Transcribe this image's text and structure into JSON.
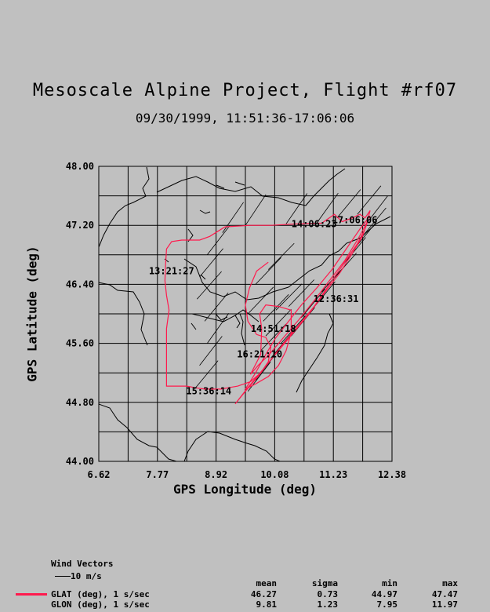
{
  "title": "Mesoscale Alpine Project, Flight #rf07",
  "subtitle": "09/30/1999, 11:51:36-17:06:06",
  "chart_data": {
    "type": "map-track",
    "xlabel": "GPS Longitude (deg)",
    "ylabel": "GPS Latitude (deg)",
    "xlim": [
      6.62,
      12.38
    ],
    "ylim": [
      44.0,
      48.0
    ],
    "xticks": [
      "6.62",
      "7.77",
      "8.92",
      "10.08",
      "11.23",
      "12.38"
    ],
    "yticks": [
      "44.00",
      "44.80",
      "45.60",
      "46.40",
      "47.20",
      "48.00"
    ],
    "grid": true,
    "track_color": "#ff1a4d",
    "track": [
      [
        9.95,
        46.7
      ],
      [
        9.72,
        46.58
      ],
      [
        9.58,
        46.35
      ],
      [
        9.5,
        46.12
      ],
      [
        9.55,
        45.9
      ],
      [
        9.72,
        45.72
      ],
      [
        9.9,
        45.68
      ],
      [
        10.0,
        45.55
      ],
      [
        9.95,
        45.35
      ],
      [
        9.8,
        45.2
      ],
      [
        9.6,
        45.08
      ],
      [
        9.35,
        45.02
      ],
      [
        9.02,
        44.98
      ],
      [
        8.7,
        44.98
      ],
      [
        8.5,
        45.0
      ],
      [
        8.35,
        45.02
      ],
      [
        8.15,
        45.02
      ],
      [
        7.95,
        45.02
      ],
      [
        7.95,
        45.25
      ],
      [
        7.95,
        45.5
      ],
      [
        7.95,
        45.8
      ],
      [
        8.0,
        46.05
      ],
      [
        7.95,
        46.25
      ],
      [
        7.92,
        46.45
      ],
      [
        7.93,
        46.65
      ],
      [
        7.95,
        46.88
      ],
      [
        8.05,
        46.98
      ],
      [
        8.25,
        47.0
      ],
      [
        8.6,
        47.0
      ],
      [
        8.8,
        47.05
      ],
      [
        9.1,
        47.18
      ],
      [
        9.6,
        47.2
      ],
      [
        10.0,
        47.2
      ],
      [
        10.5,
        47.22
      ],
      [
        11.0,
        47.23
      ],
      [
        11.25,
        47.35
      ],
      [
        11.4,
        47.25
      ],
      [
        11.6,
        47.3
      ],
      [
        11.75,
        47.35
      ],
      [
        11.85,
        47.3
      ],
      [
        11.95,
        47.4
      ],
      [
        11.85,
        47.15
      ],
      [
        11.7,
        46.95
      ],
      [
        11.5,
        46.75
      ],
      [
        11.3,
        46.55
      ],
      [
        11.1,
        46.35
      ],
      [
        10.85,
        46.1
      ],
      [
        10.55,
        45.85
      ],
      [
        10.25,
        45.6
      ],
      [
        10.0,
        45.38
      ],
      [
        9.75,
        45.15
      ],
      [
        9.5,
        44.95
      ],
      [
        9.3,
        44.78
      ],
      [
        9.55,
        45.0
      ],
      [
        9.85,
        45.25
      ],
      [
        10.15,
        45.5
      ],
      [
        10.45,
        45.75
      ],
      [
        10.75,
        46.0
      ],
      [
        11.05,
        46.28
      ],
      [
        11.35,
        46.55
      ],
      [
        11.6,
        46.82
      ],
      [
        11.8,
        47.05
      ],
      [
        11.9,
        47.25
      ],
      [
        11.7,
        47.0
      ],
      [
        11.45,
        46.72
      ],
      [
        11.15,
        46.45
      ],
      [
        10.85,
        46.18
      ],
      [
        10.55,
        45.92
      ],
      [
        10.25,
        45.68
      ],
      [
        9.98,
        45.46
      ],
      [
        9.75,
        45.3
      ],
      [
        9.6,
        45.18
      ],
      [
        9.8,
        45.45
      ],
      [
        9.82,
        45.8
      ],
      [
        9.78,
        46.0
      ],
      [
        9.9,
        46.12
      ],
      [
        10.15,
        46.1
      ],
      [
        10.4,
        46.05
      ],
      [
        10.4,
        45.75
      ],
      [
        10.3,
        45.5
      ],
      [
        10.15,
        45.3
      ],
      [
        9.95,
        45.15
      ],
      [
        9.7,
        45.05
      ],
      [
        9.5,
        44.98
      ],
      [
        9.7,
        45.2
      ],
      [
        9.9,
        45.45
      ],
      [
        10.1,
        45.68
      ],
      [
        10.35,
        45.9
      ],
      [
        10.6,
        46.12
      ],
      [
        10.9,
        46.35
      ],
      [
        11.2,
        46.6
      ],
      [
        11.5,
        46.9
      ],
      [
        11.75,
        47.15
      ],
      [
        11.95,
        47.33
      ]
    ],
    "wind_vector_length_deg": 0.18,
    "wind_vectors": [
      [
        8.5,
        44.98,
        50
      ],
      [
        8.6,
        45.3,
        52
      ],
      [
        8.75,
        45.6,
        54
      ],
      [
        8.7,
        45.9,
        50
      ],
      [
        8.55,
        46.2,
        48
      ],
      [
        8.6,
        46.5,
        50
      ],
      [
        8.75,
        46.8,
        52
      ],
      [
        9.05,
        47.1,
        55
      ],
      [
        9.5,
        47.2,
        56
      ],
      [
        10.3,
        47.22,
        55
      ],
      [
        10.9,
        47.23,
        54
      ],
      [
        11.3,
        47.3,
        50
      ],
      [
        11.7,
        47.35,
        50
      ],
      [
        11.85,
        47.2,
        52
      ],
      [
        11.6,
        46.85,
        50
      ],
      [
        11.2,
        46.45,
        48
      ],
      [
        10.8,
        46.05,
        50
      ],
      [
        10.4,
        45.7,
        50
      ],
      [
        10.0,
        45.4,
        50
      ],
      [
        9.7,
        45.1,
        52
      ],
      [
        9.55,
        44.95,
        52
      ],
      [
        10.2,
        45.6,
        48
      ],
      [
        10.6,
        45.95,
        50
      ],
      [
        11.0,
        46.3,
        48
      ],
      [
        11.4,
        46.65,
        50
      ],
      [
        11.8,
        47.05,
        50
      ],
      [
        9.8,
        45.5,
        46
      ],
      [
        9.85,
        45.9,
        46
      ],
      [
        10.1,
        46.05,
        45
      ],
      [
        10.35,
        46.1,
        46
      ],
      [
        9.95,
        46.6,
        45
      ],
      [
        9.7,
        46.4,
        46
      ],
      [
        9.55,
        46.0,
        46
      ],
      [
        9.9,
        45.7,
        46
      ]
    ],
    "annotations": [
      {
        "label": "14:06:23",
        "lon": 10.85,
        "lat": 47.22
      },
      {
        "label": "17:06:06",
        "lon": 11.65,
        "lat": 47.27
      },
      {
        "label": "13:21:27",
        "lon": 8.05,
        "lat": 46.58
      },
      {
        "label": "12:36:31",
        "lon": 11.28,
        "lat": 46.2
      },
      {
        "label": "14:51:18",
        "lon": 10.05,
        "lat": 45.8
      },
      {
        "label": "16:21:10",
        "lon": 9.78,
        "lat": 45.45
      },
      {
        "label": "15:36:14",
        "lon": 8.78,
        "lat": 44.95
      }
    ]
  },
  "legend": {
    "wind_title": "Wind Vectors",
    "wind_scale": "10 m/s",
    "headers": {
      "mean": "mean",
      "sigma": "sigma",
      "min": "min",
      "max": "max"
    },
    "rows": [
      {
        "label": "GLAT (deg), 1 s/sec",
        "mean": "46.27",
        "sigma": "0.73",
        "min": "44.97",
        "max": "47.47",
        "color": "#ff1a4d"
      },
      {
        "label": "GLON (deg), 1 s/sec",
        "mean": "9.81",
        "sigma": "1.23",
        "min": "7.95",
        "max": "11.97"
      }
    ]
  }
}
